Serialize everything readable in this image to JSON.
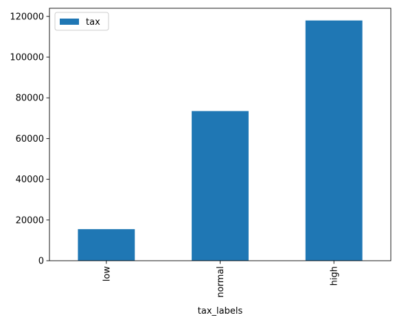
{
  "chart_data": {
    "type": "bar",
    "title": "",
    "xlabel": "tax_labels",
    "ylabel": "",
    "categories": [
      "low",
      "normal",
      "high"
    ],
    "series": [
      {
        "name": "tax",
        "values": [
          15500,
          73500,
          118000
        ]
      }
    ],
    "ylim": [
      0,
      124000
    ],
    "yticks": [
      0,
      20000,
      40000,
      60000,
      80000,
      100000,
      120000
    ],
    "grid": false,
    "legend_position": "top-left",
    "bar_color": "#1f77b4",
    "tick_label_rotation": "vertical"
  }
}
